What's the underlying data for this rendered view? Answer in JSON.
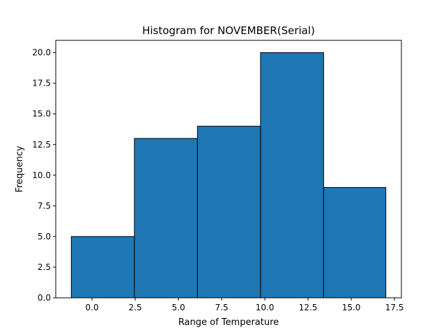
{
  "chart_data": {
    "type": "bar",
    "title": "Histogram for NOVEMBER(Serial)",
    "xlabel": "Range of Temperature",
    "ylabel": "Frequency",
    "bins": [
      {
        "start": -1.2,
        "end": 2.45,
        "value": 5
      },
      {
        "start": 2.45,
        "end": 6.1,
        "value": 13
      },
      {
        "start": 6.1,
        "end": 9.75,
        "value": 14
      },
      {
        "start": 9.75,
        "end": 13.4,
        "value": 20
      },
      {
        "start": 13.4,
        "end": 17.0,
        "value": 9
      }
    ],
    "xlim": [
      -2.1,
      17.9
    ],
    "ylim": [
      0,
      21
    ],
    "xticks": [
      0.0,
      2.5,
      5.0,
      7.5,
      10.0,
      12.5,
      15.0,
      17.5
    ],
    "xtick_labels": [
      "0.0",
      "2.5",
      "5.0",
      "7.5",
      "10.0",
      "12.5",
      "15.0",
      "17.5"
    ],
    "yticks": [
      0.0,
      2.5,
      5.0,
      7.5,
      10.0,
      12.5,
      15.0,
      17.5,
      20.0
    ],
    "ytick_labels": [
      "0.0",
      "2.5",
      "5.0",
      "7.5",
      "10.0",
      "12.5",
      "15.0",
      "17.5",
      "20.0"
    ],
    "bar_color": "#1f77b4",
    "edge_color": "#000000",
    "grid": false
  }
}
